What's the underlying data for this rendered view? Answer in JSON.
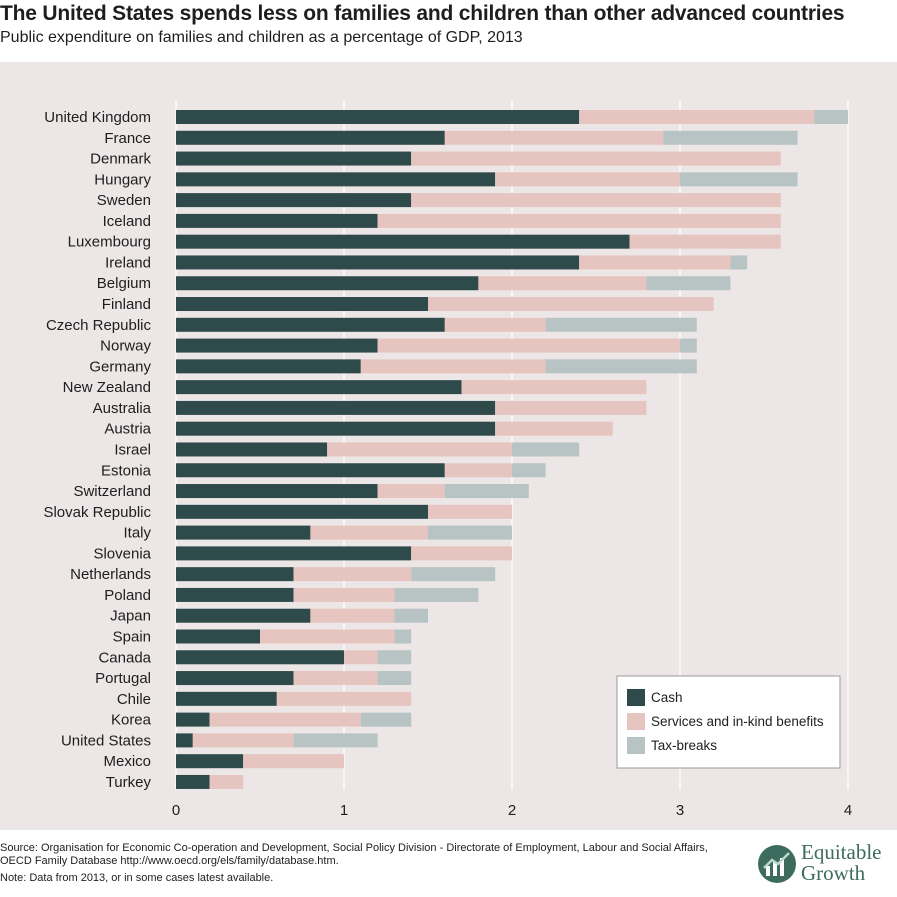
{
  "chart_data": {
    "type": "bar",
    "orientation": "horizontal",
    "stacked": true,
    "title": "The United States spends less on families and children than other advanced countries",
    "subtitle": "Public expenditure on families and children as a percentage of GDP, 2013",
    "categories": [
      "United Kingdom",
      "France",
      "Denmark",
      "Hungary",
      "Sweden",
      "Iceland",
      "Luxembourg",
      "Ireland",
      "Belgium",
      "Finland",
      "Czech Republic",
      "Norway",
      "Germany",
      "New Zealand",
      "Australia",
      "Austria",
      "Israel",
      "Estonia",
      "Switzerland",
      "Slovak Republic",
      "Italy",
      "Slovenia",
      "Netherlands",
      "Poland",
      "Japan",
      "Spain",
      "Canada",
      "Portugal",
      "Chile",
      "Korea",
      "United States",
      "Mexico",
      "Turkey"
    ],
    "series": [
      {
        "name": "Cash",
        "color": "#2f4a4a",
        "values": [
          2.4,
          1.6,
          1.4,
          1.9,
          1.4,
          1.2,
          2.7,
          2.4,
          1.8,
          1.5,
          1.6,
          1.2,
          1.1,
          1.7,
          1.9,
          1.9,
          0.9,
          1.6,
          1.2,
          1.5,
          0.8,
          1.4,
          0.7,
          0.7,
          0.8,
          0.5,
          1.0,
          0.7,
          0.6,
          0.2,
          0.1,
          0.4,
          0.2
        ]
      },
      {
        "name": "Services and in-kind benefits",
        "color": "#e6c5c0",
        "values": [
          1.4,
          1.3,
          2.2,
          1.1,
          2.2,
          2.4,
          0.9,
          0.9,
          1.0,
          1.7,
          0.6,
          1.8,
          1.1,
          1.1,
          0.9,
          0.7,
          1.1,
          0.4,
          0.4,
          0.5,
          0.7,
          0.6,
          0.7,
          0.6,
          0.5,
          0.8,
          0.2,
          0.5,
          0.8,
          0.9,
          0.6,
          0.6,
          0.2
        ]
      },
      {
        "name": "Tax-breaks",
        "color": "#b8c3c3",
        "values": [
          0.2,
          0.8,
          0.0,
          0.7,
          0.0,
          0.0,
          0.0,
          0.1,
          0.5,
          0.0,
          0.9,
          0.1,
          0.9,
          0.0,
          0.0,
          0.0,
          0.4,
          0.2,
          0.5,
          0.0,
          0.5,
          0.0,
          0.5,
          0.5,
          0.2,
          0.1,
          0.2,
          0.2,
          0.0,
          0.3,
          0.5,
          0.0,
          0.0
        ]
      }
    ],
    "xlim": [
      0,
      4
    ],
    "xticks": [
      0,
      1,
      2,
      3,
      4
    ],
    "grid": true,
    "legend_position": "bottom-right"
  },
  "footer": {
    "source": "Source: Organisation for Economic Co-operation and Development, Social Policy Division - Directorate of Employment, Labour and Social Affairs, OECD Family Database http://www.oecd.org/els/family/database.htm.",
    "note": "Note: Data from 2013, or in some cases latest available."
  },
  "brand": {
    "line1": "Equitable",
    "line2": "Growth",
    "logo_icon": "growth-chart-icon",
    "color": "#3d6b5e"
  }
}
